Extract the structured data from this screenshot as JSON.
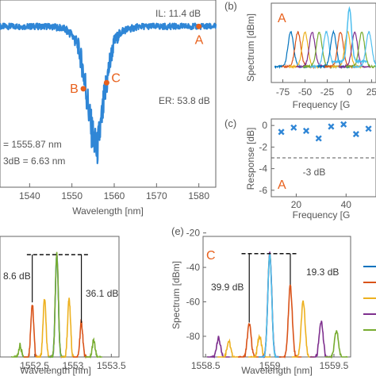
{
  "chart_data": [
    {
      "panel": "a",
      "type": "line",
      "xlabel": "Wavelength [nm]",
      "xticks": [
        1540,
        1550,
        1560,
        1570,
        1580
      ],
      "xlim": [
        1533,
        1584
      ],
      "ylim": [
        -16,
        2
      ],
      "series": [
        {
          "color": "#2F86D6",
          "x": [
            1533,
            1545,
            1548,
            1550,
            1551.5,
            1552.5,
            1553.3,
            1554.5,
            1555.87,
            1557,
            1558,
            1559,
            1560,
            1562,
            1566,
            1584
          ],
          "y": [
            0,
            0,
            -0.2,
            -0.8,
            -2,
            -4,
            -6.2,
            -10,
            -12.5,
            -9.5,
            -6.2,
            -3.5,
            -1.5,
            -0.4,
            0,
            0
          ]
        }
      ],
      "markers": [
        {
          "label": "A",
          "x": 1580,
          "y": 0
        },
        {
          "label": "B",
          "x": 1552.7,
          "y": -6.2
        },
        {
          "label": "C",
          "x": 1558.2,
          "y": -5.6
        }
      ],
      "annotations": [
        "IL: 11.4 dB",
        "ER: 53.8 dB",
        "= 1555.87 nm",
        "3dB = 6.63 nm"
      ]
    },
    {
      "panel": "b",
      "type": "line",
      "title": "A",
      "xlabel": "Frequency [G",
      "ylabel": "Spectrum [dBm]",
      "xticks": [
        -75,
        -50,
        -25,
        0,
        25
      ],
      "xlim": [
        -88,
        30
      ],
      "ylim": [
        -60,
        0
      ],
      "peak_offsets": [
        -66,
        -58,
        -50,
        -42,
        -34,
        -26,
        -18,
        -10,
        -2,
        6,
        14,
        22
      ],
      "center_peak": 0,
      "colors": [
        "#0072BD",
        "#D95319",
        "#EDB120",
        "#7E2F8E",
        "#77AC30",
        "#4DBEEE"
      ]
    },
    {
      "panel": "c",
      "type": "scatter",
      "title": "A",
      "xlabel": "Frequency [G",
      "ylabel": "Response [dB]",
      "xticks": [
        20,
        40
      ],
      "yticks": [
        0,
        -2,
        -4,
        -6
      ],
      "xlim": [
        10,
        52
      ],
      "ylim": [
        -6.6,
        0.6
      ],
      "color": "#2F86D6",
      "x": [
        14,
        19,
        24,
        29,
        34,
        39,
        44,
        49
      ],
      "y": [
        -0.6,
        -0.2,
        -0.5,
        -1.2,
        -0.1,
        0.1,
        -0.8,
        -0.3
      ],
      "reference_label": "-3 dB"
    },
    {
      "panel": "d",
      "type": "line",
      "xlabel": "Wavelength [nm]",
      "xticks": [
        1552.5,
        1553,
        1553.5
      ],
      "xlim": [
        1552.05,
        1553.6
      ],
      "ylim": [
        -75,
        -22
      ],
      "annotations": [
        "8.6 dB",
        "36.1 dB"
      ],
      "peaks": [
        {
          "x": 1552.31,
          "y": -70,
          "color": "#77AC30"
        },
        {
          "x": 1552.47,
          "y": -52,
          "color": "#D95319"
        },
        {
          "x": 1552.63,
          "y": -50,
          "color": "#EDB120"
        },
        {
          "x": 1552.79,
          "y": -30,
          "color": "#7E2F8E"
        },
        {
          "x": 1552.79,
          "y": -30,
          "color": "#4DBEEE"
        },
        {
          "x": 1552.79,
          "y": -30,
          "color": "#77AC30"
        },
        {
          "x": 1552.95,
          "y": -50,
          "color": "#EDB120"
        },
        {
          "x": 1553.11,
          "y": -60,
          "color": "#D95319"
        },
        {
          "x": 1553.27,
          "y": -68,
          "color": "#77AC30"
        }
      ]
    },
    {
      "panel": "e",
      "type": "line",
      "title": "C",
      "xlabel": "Wavelength [nm]",
      "ylabel": "Spectrum [dBm]",
      "xticks": [
        1558.5,
        1559,
        1559.5
      ],
      "yticks": [
        -20,
        -40,
        -60,
        -80
      ],
      "xlim": [
        1558.48,
        1559.63
      ],
      "ylim": [
        -92,
        -22
      ],
      "annotations": [
        "39.9 dB",
        "19.3 dB"
      ],
      "peaks": [
        {
          "x": 1558.6,
          "y": -81,
          "color": "#7E2F8E"
        },
        {
          "x": 1558.68,
          "y": -83,
          "color": "#EDB120"
        },
        {
          "x": 1558.84,
          "y": -73,
          "color": "#D95319"
        },
        {
          "x": 1558.92,
          "y": -80,
          "color": "#EDB120"
        },
        {
          "x": 1559.0,
          "y": -32,
          "color": "#77AC30"
        },
        {
          "x": 1559.0,
          "y": -32,
          "color": "#7E2F8E"
        },
        {
          "x": 1559.0,
          "y": -33,
          "color": "#4DBEEE"
        },
        {
          "x": 1559.16,
          "y": -51,
          "color": "#D95319"
        },
        {
          "x": 1559.26,
          "y": -60,
          "color": "#EDB120"
        },
        {
          "x": 1559.4,
          "y": -71,
          "color": "#7E2F8E"
        },
        {
          "x": 1559.52,
          "y": -77,
          "color": "#77AC30"
        }
      ]
    }
  ],
  "panel_labels": {
    "b": "(b)",
    "c": "(c)",
    "e": "(e)"
  },
  "legend_colors": [
    "#0072BD",
    "#D95319",
    "#EDB120",
    "#7E2F8E",
    "#77AC30"
  ]
}
